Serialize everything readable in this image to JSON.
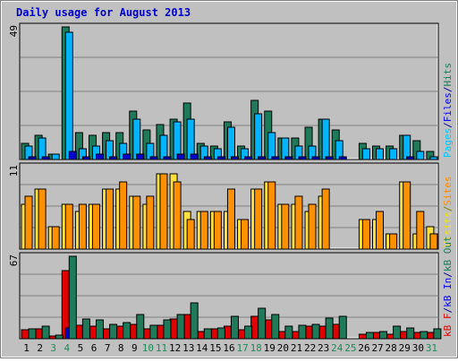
{
  "chart_data": [
    {
      "type": "bar",
      "title": "Daily usage for August 2013",
      "y_axis_label": "49",
      "ylim": [
        0,
        49
      ],
      "grid": true,
      "side_label_parts": [
        {
          "text": "Pages",
          "color": "#00c8ff"
        },
        {
          "text": "/",
          "color": "#00008b"
        },
        {
          "text": "Files",
          "color": "#0000ff"
        },
        {
          "text": "/",
          "color": "#00008b"
        },
        {
          "text": "Hits",
          "color": "#1f7a5a"
        }
      ],
      "series": [
        {
          "name": "Hits",
          "color": "#1f7a5a",
          "values": [
            6,
            9,
            2,
            49,
            10,
            9,
            10,
            10,
            18,
            11,
            13,
            15,
            21,
            6,
            5,
            14,
            5,
            22,
            18,
            8,
            8,
            12,
            15,
            11,
            0,
            6,
            5,
            5,
            9,
            7,
            3
          ]
        },
        {
          "name": "Files",
          "color": "#00b4ff",
          "values": [
            5,
            8,
            2,
            47,
            4,
            5,
            7,
            6,
            15,
            6,
            9,
            14,
            15,
            5,
            4,
            12,
            4,
            17,
            10,
            8,
            5,
            5,
            15,
            7,
            0,
            4,
            4,
            4,
            9,
            3,
            1
          ]
        },
        {
          "name": "Pages",
          "color": "#0000cd",
          "values": [
            1,
            1,
            0,
            3,
            1,
            2,
            1,
            2,
            2,
            1,
            1,
            2,
            2,
            1,
            1,
            1,
            1,
            1,
            1,
            1,
            1,
            1,
            1,
            1,
            0,
            0,
            0,
            0,
            1,
            0,
            0
          ]
        }
      ]
    },
    {
      "type": "bar",
      "y_axis_label": "11",
      "ylim": [
        0,
        11
      ],
      "grid": true,
      "side_label_parts": [
        {
          "text": "Visits",
          "color": "#f0e020"
        },
        {
          "text": "/",
          "color": "#808000"
        },
        {
          "text": "Sites",
          "color": "#ff8c00"
        }
      ],
      "series": [
        {
          "name": "Visits",
          "color": "#ffe040",
          "values": [
            6,
            8,
            3,
            6,
            5,
            6,
            8,
            8,
            7,
            6,
            10,
            10,
            5,
            5,
            5,
            5,
            4,
            8,
            9,
            6,
            6,
            5,
            7,
            0,
            0,
            4,
            4,
            2,
            9,
            2,
            3
          ]
        },
        {
          "name": "Sites",
          "color": "#ff9000",
          "values": [
            7,
            8,
            3,
            6,
            6,
            6,
            8,
            9,
            7,
            7,
            10,
            9,
            4,
            5,
            5,
            8,
            4,
            8,
            9,
            6,
            7,
            6,
            8,
            0,
            0,
            4,
            5,
            2,
            9,
            5,
            2
          ]
        }
      ]
    },
    {
      "type": "bar",
      "y_axis_label": "67",
      "ylim": [
        0,
        67
      ],
      "grid": true,
      "side_label_parts": [
        {
          "text": "kB F",
          "color": "#e00000"
        },
        {
          "text": "/",
          "color": "#00008b"
        },
        {
          "text": "kB In",
          "color": "#0000ff"
        },
        {
          "text": "/",
          "color": "#00008b"
        },
        {
          "text": "kB Out",
          "color": "#1f7a5a"
        }
      ],
      "series": [
        {
          "name": "kB F",
          "color": "#e00000",
          "values": [
            7,
            8,
            2,
            55,
            11,
            10,
            8,
            10,
            12,
            8,
            11,
            16,
            20,
            6,
            8,
            10,
            7,
            18,
            15,
            6,
            6,
            10,
            10,
            12,
            0,
            4,
            5,
            4,
            6,
            5,
            5
          ]
        },
        {
          "name": "kB In",
          "color": "#0000cd",
          "values": [
            0,
            0,
            0,
            9,
            0,
            0,
            0,
            0,
            0,
            0,
            0,
            0,
            0,
            0,
            0,
            0,
            0,
            0,
            0,
            0,
            0,
            0,
            0,
            0,
            0,
            0,
            0,
            0,
            0,
            0,
            0
          ]
        },
        {
          "name": "kB Out",
          "color": "#1f7a5a",
          "values": [
            8,
            10,
            3,
            67,
            16,
            15,
            12,
            13,
            20,
            11,
            15,
            20,
            29,
            8,
            9,
            18,
            10,
            25,
            20,
            10,
            11,
            12,
            17,
            18,
            0,
            5,
            6,
            10,
            9,
            6,
            8
          ]
        }
      ]
    }
  ],
  "days": [
    {
      "label": "1",
      "color": "#000000"
    },
    {
      "label": "2",
      "color": "#000000"
    },
    {
      "label": "3",
      "color": "#1f8a5a"
    },
    {
      "label": "4",
      "color": "#1f8a5a"
    },
    {
      "label": "5",
      "color": "#000000"
    },
    {
      "label": "6",
      "color": "#000000"
    },
    {
      "label": "7",
      "color": "#000000"
    },
    {
      "label": "8",
      "color": "#000000"
    },
    {
      "label": "9",
      "color": "#000000"
    },
    {
      "label": "10",
      "color": "#1f8a5a"
    },
    {
      "label": "11",
      "color": "#1f8a5a"
    },
    {
      "label": "12",
      "color": "#000000"
    },
    {
      "label": "13",
      "color": "#000000"
    },
    {
      "label": "14",
      "color": "#000000"
    },
    {
      "label": "15",
      "color": "#000000"
    },
    {
      "label": "16",
      "color": "#000000"
    },
    {
      "label": "17",
      "color": "#1f8a5a"
    },
    {
      "label": "18",
      "color": "#1f8a5a"
    },
    {
      "label": "19",
      "color": "#000000"
    },
    {
      "label": "20",
      "color": "#000000"
    },
    {
      "label": "21",
      "color": "#000000"
    },
    {
      "label": "22",
      "color": "#000000"
    },
    {
      "label": "23",
      "color": "#000000"
    },
    {
      "label": "24",
      "color": "#1f8a5a"
    },
    {
      "label": "25",
      "color": "#1f8a5a"
    },
    {
      "label": "26",
      "color": "#000000"
    },
    {
      "label": "27",
      "color": "#000000"
    },
    {
      "label": "28",
      "color": "#000000"
    },
    {
      "label": "29",
      "color": "#000000"
    },
    {
      "label": "30",
      "color": "#000000"
    },
    {
      "label": "31",
      "color": "#1f8a5a"
    }
  ],
  "colors": {
    "background": "#c0c0c0",
    "plot_background": "#c0c0c0",
    "title": "#0000cd",
    "grid": "#808080"
  }
}
